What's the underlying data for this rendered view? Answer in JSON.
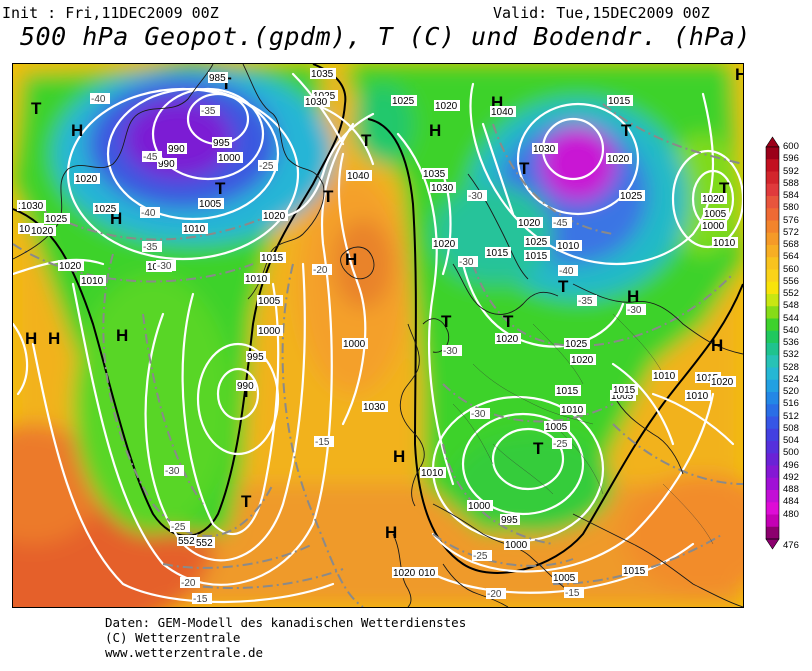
{
  "header": {
    "init": "Init : Fri,11DEC2009 00Z",
    "valid": "Valid: Tue,15DEC2009 00Z",
    "title": "500 hPa Geopot.(gpdm), T (C) und Bodendr. (hPa)"
  },
  "colorbar": {
    "labels": [
      "600",
      "596",
      "592",
      "588",
      "584",
      "580",
      "576",
      "572",
      "568",
      "564",
      "560",
      "556",
      "552",
      "548",
      "544",
      "540",
      "536",
      "532",
      "528",
      "524",
      "520",
      "516",
      "512",
      "508",
      "504",
      "500",
      "496",
      "492",
      "488",
      "484",
      "480",
      "476"
    ],
    "colors": [
      "#9b0019",
      "#c21020",
      "#d2252c",
      "#e03a3c",
      "#e8553c",
      "#ef6a34",
      "#f3842c",
      "#f59a28",
      "#f7ae24",
      "#f8c31e",
      "#fad319",
      "#f8e30a",
      "#c8e612",
      "#86dc18",
      "#3ed22c",
      "#20c85e",
      "#1fc38e",
      "#27c2b6",
      "#25b7d4",
      "#22a0e2",
      "#2387e6",
      "#2a6ee6",
      "#3656e6",
      "#4340e0",
      "#5530dc",
      "#6a22d6",
      "#8418d4",
      "#a010d6",
      "#c20ed6",
      "#de0cd6",
      "#c400b4",
      "#8c006e"
    ]
  },
  "map": {
    "symbols": [
      {
        "t": "H"
      },
      {
        "t": "H"
      },
      {
        "t": "H"
      },
      {
        "t": "H"
      },
      {
        "t": "H"
      },
      {
        "t": "H"
      },
      {
        "t": "H"
      },
      {
        "t": "H"
      },
      {
        "t": "H"
      },
      {
        "t": "H"
      },
      {
        "t": "H"
      },
      {
        "t": "H"
      },
      {
        "t": "H"
      },
      {
        "t": "T"
      },
      {
        "t": "T"
      },
      {
        "t": "T"
      },
      {
        "t": "T"
      },
      {
        "t": "T"
      },
      {
        "t": "T"
      },
      {
        "t": "T"
      },
      {
        "t": "T"
      },
      {
        "t": "T"
      },
      {
        "t": "T"
      },
      {
        "t": "T"
      },
      {
        "t": "T"
      },
      {
        "t": "T"
      },
      {
        "t": "T"
      },
      {
        "t": "T"
      },
      {
        "t": "T"
      }
    ],
    "pressure_labels": [
      "990",
      "985",
      "995",
      "1000",
      "990",
      "1005",
      "1010",
      "1015",
      "1020",
      "1025",
      "1010",
      "1015",
      "1020",
      "1025",
      "1030",
      "1025",
      "1035",
      "1030",
      "1040",
      "1020",
      "1015",
      "1010",
      "1005",
      "1000",
      "995",
      "990",
      "1000",
      "1030",
      "1025",
      "1020",
      "1040",
      "1035",
      "1030",
      "1030",
      "1020",
      "1015",
      "1025",
      "1020",
      "1010",
      "1015",
      "1020",
      "1025",
      "1020",
      "1005",
      "1000",
      "1010",
      "1015",
      "1020",
      "1025",
      "1020",
      "1015",
      "1010",
      "1005",
      "1000",
      "995",
      "1000",
      "1005",
      "1010",
      "1015",
      "1010",
      "1015",
      "1005",
      "1010",
      "1010",
      "1020",
      "1015",
      "1020",
      "1025",
      "1020"
    ],
    "temp_labels": [
      "-40",
      "-35",
      "-45",
      "-40",
      "-35",
      "-30",
      "-25",
      "-30",
      "-45",
      "-40",
      "-35",
      "-30",
      "-30",
      "-30",
      "-30",
      "-25",
      "-20",
      "-15",
      "-20",
      "-25",
      "-30",
      "-25",
      "-20",
      "-15",
      "-15"
    ],
    "height_labels": [
      "552",
      "552"
    ]
  },
  "footer": {
    "line1": "Daten: GEM-Modell des kanadischen Wetterdienstes",
    "line2": "(C) Wetterzentrale",
    "line3": "www.wetterzentrale.de"
  }
}
